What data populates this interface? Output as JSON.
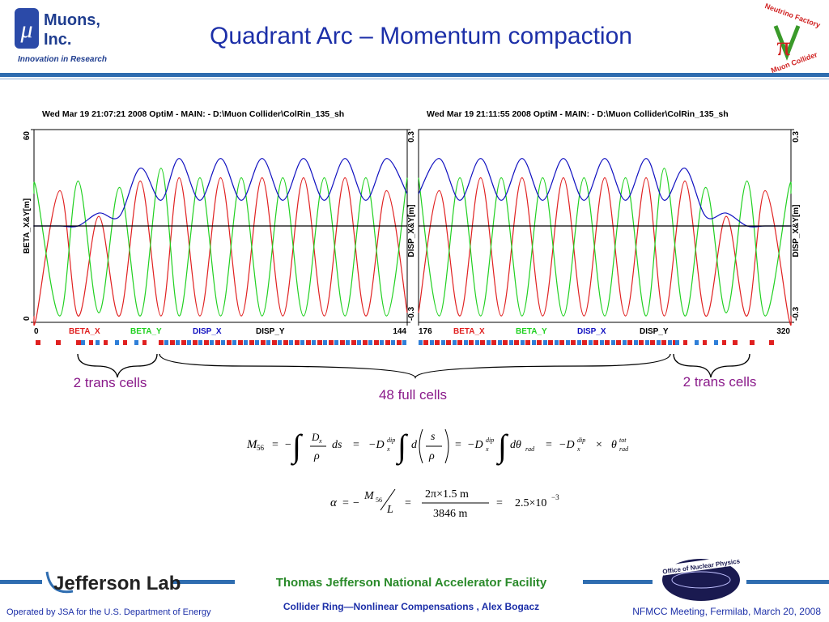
{
  "header": {
    "logo_symbol": "μ",
    "logo_line1": "Muons,",
    "logo_line2": "Inc.",
    "tagline": "Innovation in Research",
    "title": "Quadrant Arc – Momentum compaction",
    "nf_top": "Neutrino Factory",
    "nf_bottom": "Muon Collider"
  },
  "chart_data": [
    {
      "type": "line",
      "title": "Wed Mar 19 21:07:21 2008    OptiM - MAIN: - D:\\Muon Collider\\ColRin_135_sh",
      "y_label": "BETA_X&Y[m]",
      "y2_label": "DISP_X&Y[m]",
      "x": [
        0,
        1,
        10,
        17,
        25,
        33,
        41,
        49,
        56,
        64,
        72,
        80,
        88,
        96,
        104,
        112,
        120,
        128,
        136,
        144
      ],
      "xlim": [
        0,
        144
      ],
      "xticks": [
        0,
        144
      ],
      "ylim": [
        0,
        60
      ],
      "yticks": [
        0,
        60
      ],
      "y2lim": [
        -0.3,
        0.3
      ],
      "y2ticks": [
        -0.3,
        0.3
      ],
      "series": [
        {
          "name": "BETA_X",
          "color": "#e02020",
          "values": [
            2,
            2,
            41,
            2,
            33,
            2,
            44,
            2,
            45,
            2,
            45,
            2,
            45,
            2,
            45,
            2,
            45,
            2,
            41,
            3
          ]
        },
        {
          "name": "BETA_Y",
          "color": "#20d020",
          "values": [
            40,
            41,
            2,
            44,
            3,
            42,
            2,
            48,
            2,
            45,
            2,
            45,
            2,
            45,
            2,
            45,
            2,
            45,
            2,
            45
          ]
        },
        {
          "name": "DISP_X",
          "color": "#1010c0",
          "axis": "y2",
          "values": [
            0,
            0,
            0,
            0,
            0.04,
            0.03,
            0.18,
            0.08,
            0.21,
            0.08,
            0.21,
            0.08,
            0.21,
            0.08,
            0.21,
            0.08,
            0.21,
            0.08,
            0.21,
            0.1
          ]
        },
        {
          "name": "DISP_Y",
          "color": "#000000",
          "axis": "y2",
          "values": [
            0,
            0,
            0,
            0,
            0,
            0,
            0,
            0,
            0,
            0,
            0,
            0,
            0,
            0,
            0,
            0,
            0,
            0,
            0,
            0
          ]
        }
      ]
    },
    {
      "type": "line",
      "title": "Wed Mar 19 21:11:55 2008    OptiM - MAIN: - D:\\Muon Collider\\ColRin_135_sh",
      "y2_label": "DISP_X&Y[m]",
      "x": [
        176,
        184,
        192,
        200,
        208,
        216,
        224,
        232,
        240,
        248,
        256,
        264,
        271,
        279,
        287,
        295,
        303,
        310,
        319,
        320
      ],
      "xlim": [
        176,
        320
      ],
      "xticks": [
        176,
        320
      ],
      "ylim": [
        0,
        60
      ],
      "y2lim": [
        -0.3,
        0.3
      ],
      "y2ticks": [
        -0.3,
        0.3
      ],
      "series": [
        {
          "name": "BETA_X",
          "color": "#e02020",
          "values": [
            3,
            41,
            2,
            45,
            2,
            45,
            2,
            45,
            2,
            45,
            2,
            45,
            2,
            44,
            2,
            33,
            2,
            41,
            2,
            2
          ]
        },
        {
          "name": "BETA_Y",
          "color": "#20d020",
          "values": [
            45,
            2,
            45,
            2,
            45,
            2,
            45,
            2,
            45,
            2,
            45,
            2,
            48,
            2,
            42,
            3,
            44,
            2,
            41,
            40
          ]
        },
        {
          "name": "DISP_X",
          "color": "#1010c0",
          "axis": "y2",
          "values": [
            0.1,
            0.21,
            0.08,
            0.21,
            0.08,
            0.21,
            0.08,
            0.21,
            0.08,
            0.21,
            0.08,
            0.21,
            0.08,
            0.18,
            0.03,
            0.04,
            0,
            0,
            0,
            0
          ]
        },
        {
          "name": "DISP_Y",
          "color": "#000000",
          "axis": "y2",
          "values": [
            0,
            0,
            0,
            0,
            0,
            0,
            0,
            0,
            0,
            0,
            0,
            0,
            0,
            0,
            0,
            0,
            0,
            0,
            0,
            0
          ]
        }
      ]
    }
  ],
  "annotations": {
    "left_trans": "2 trans cells",
    "full": "48 full cells",
    "right_trans": "2 trans cells"
  },
  "equations": {
    "m56": [
      "M",
      "56",
      "=",
      "−",
      "∫",
      "D",
      "x",
      "ρ",
      "ds",
      "=",
      "−D",
      "x",
      "dip",
      "∫",
      "d",
      "s",
      "ρ",
      "=",
      "−D",
      "x",
      "dip",
      "∫",
      "dθ",
      "rad",
      "=",
      "−D",
      "x",
      "dip",
      "×",
      "θ",
      "rad",
      "tot"
    ],
    "alpha": [
      "α",
      "=",
      "−",
      "M",
      "56",
      "L",
      "=",
      "2π×1.5  m",
      "3846  m",
      "=",
      "2.5×10",
      "−3"
    ]
  },
  "footer": {
    "lab": "Jefferson Lab",
    "facility": "Thomas Jefferson National Accelerator Facility",
    "talk": "Collider Ring—Nonlinear Compensations , Alex Bogacz",
    "operated": "Operated by JSA for the U.S. Department of Energy",
    "meeting": "NFMCC Meeting, Fermilab, March 20, 2008",
    "office": "Office of Nuclear Physics"
  }
}
